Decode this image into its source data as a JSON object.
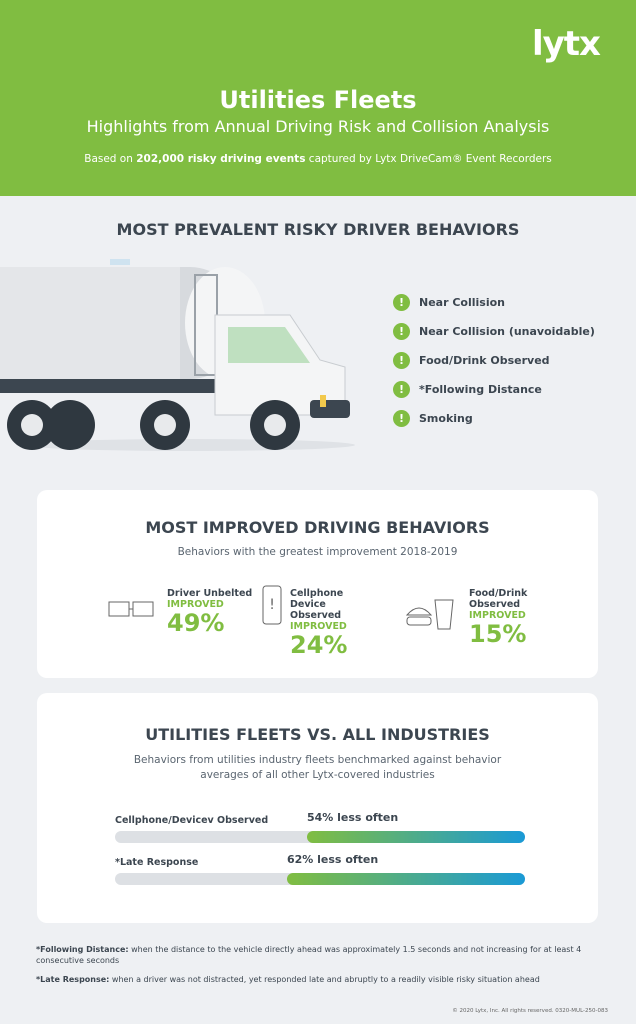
{
  "header": {
    "logo": "lytx",
    "title": "Utilities Fleets",
    "subtitle": "Highlights from Annual Driving Risk and Collision Analysis",
    "basis": {
      "before": "Based on",
      "bold": "202,000 risky driving events",
      "after": "captured by Lytx DriveCam® Event Recorders"
    }
  },
  "prevalent": {
    "title": "MOST PREVALENT RISKY DRIVER BEHAVIORS",
    "items": [
      "Near Collision",
      "Near Collision (unavoidable)",
      "Food/Drink Observed",
      "*Following Distance",
      "Smoking"
    ]
  },
  "improved": {
    "title": "MOST IMPROVED DRIVING BEHAVIORS",
    "subtitle": "Behaviors with the greatest improvement 2018-2019",
    "items": [
      {
        "label": "Driver Unbelted",
        "status": "IMPROVED",
        "value": "49%"
      },
      {
        "label": "Cellphone Device Observed",
        "status": "IMPROVED",
        "value": "24%"
      },
      {
        "label": "Food/Drink Observed",
        "status": "IMPROVED",
        "value": "15%"
      }
    ]
  },
  "comparison": {
    "title": "UTILITIES FLEETS VS. ALL INDUSTRIES",
    "subtitle": "Behaviors from utilities industry fleets benchmarked against behavior averages of all other Lytx-covered industries",
    "rows": [
      {
        "label": "Cellphone/Devicev Observed",
        "text": "54% less often"
      },
      {
        "label": "*Late Response",
        "text": "62% less often"
      }
    ]
  },
  "footnotes": [
    {
      "term": "*Following Distance:",
      "text": "when the distance to the vehicle directly ahead was approximately 1.5 seconds and not increasing for at least 4 consecutive seconds"
    },
    {
      "term": "*Late Response:",
      "text": "when a driver was not distracted, yet responded late and abruptly to a readily visible risky situation ahead"
    }
  ],
  "copyright": "© 2020 Lytx, Inc. All rights reserved. 0320-MUL-250-083"
}
